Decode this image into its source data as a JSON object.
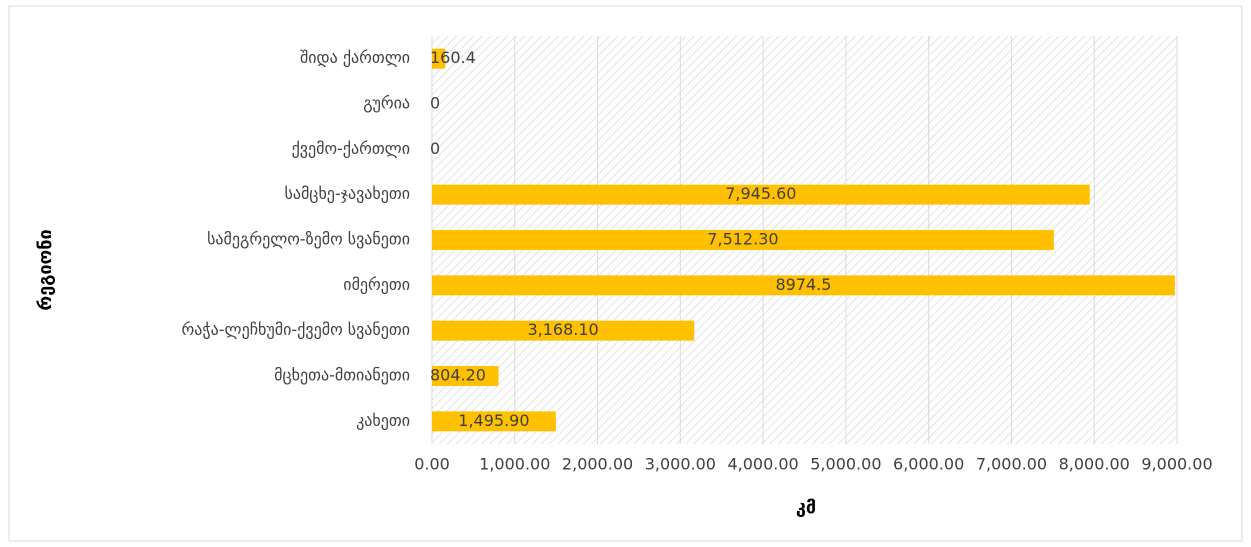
{
  "chart_data": {
    "type": "barh",
    "categories": [
      "შიდა ქართლი",
      "გურია",
      "ქვემო-ქართლი",
      "სამცხე-ჯავახეთი",
      "სამეგრელო-ზემო სვანეთი",
      "იმერეთი",
      "რაჭა-ლეჩხუმი-ქვემო სვანეთი",
      "მცხეთა-მთიანეთი",
      "კახეთი"
    ],
    "values": [
      160.4,
      0,
      0,
      7945.6,
      7512.3,
      8974.5,
      3168.1,
      804.2,
      1495.9
    ],
    "value_labels": [
      "160.4",
      "0",
      "0",
      "7,945.60",
      "7,512.30",
      "8974.5",
      "3,168.10",
      "804.20",
      "1,495.90"
    ],
    "color": "#ffc000",
    "xlim": [
      0,
      9000
    ],
    "xticks": [
      {
        "value": 0,
        "label": "0.00"
      },
      {
        "value": 1000,
        "label": "1,000.00"
      },
      {
        "value": 2000,
        "label": "2,000.00"
      },
      {
        "value": 3000,
        "label": "3,000.00"
      },
      {
        "value": 4000,
        "label": "4,000.00"
      },
      {
        "value": 5000,
        "label": "5,000.00"
      },
      {
        "value": 6000,
        "label": "6,000.00"
      },
      {
        "value": 7000,
        "label": "7,000.00"
      },
      {
        "value": 8000,
        "label": "8,000.00"
      },
      {
        "value": 9000,
        "label": "9,000.00"
      }
    ],
    "xlabel": "კმ",
    "ylabel": "რეგიონი",
    "grid": true
  }
}
